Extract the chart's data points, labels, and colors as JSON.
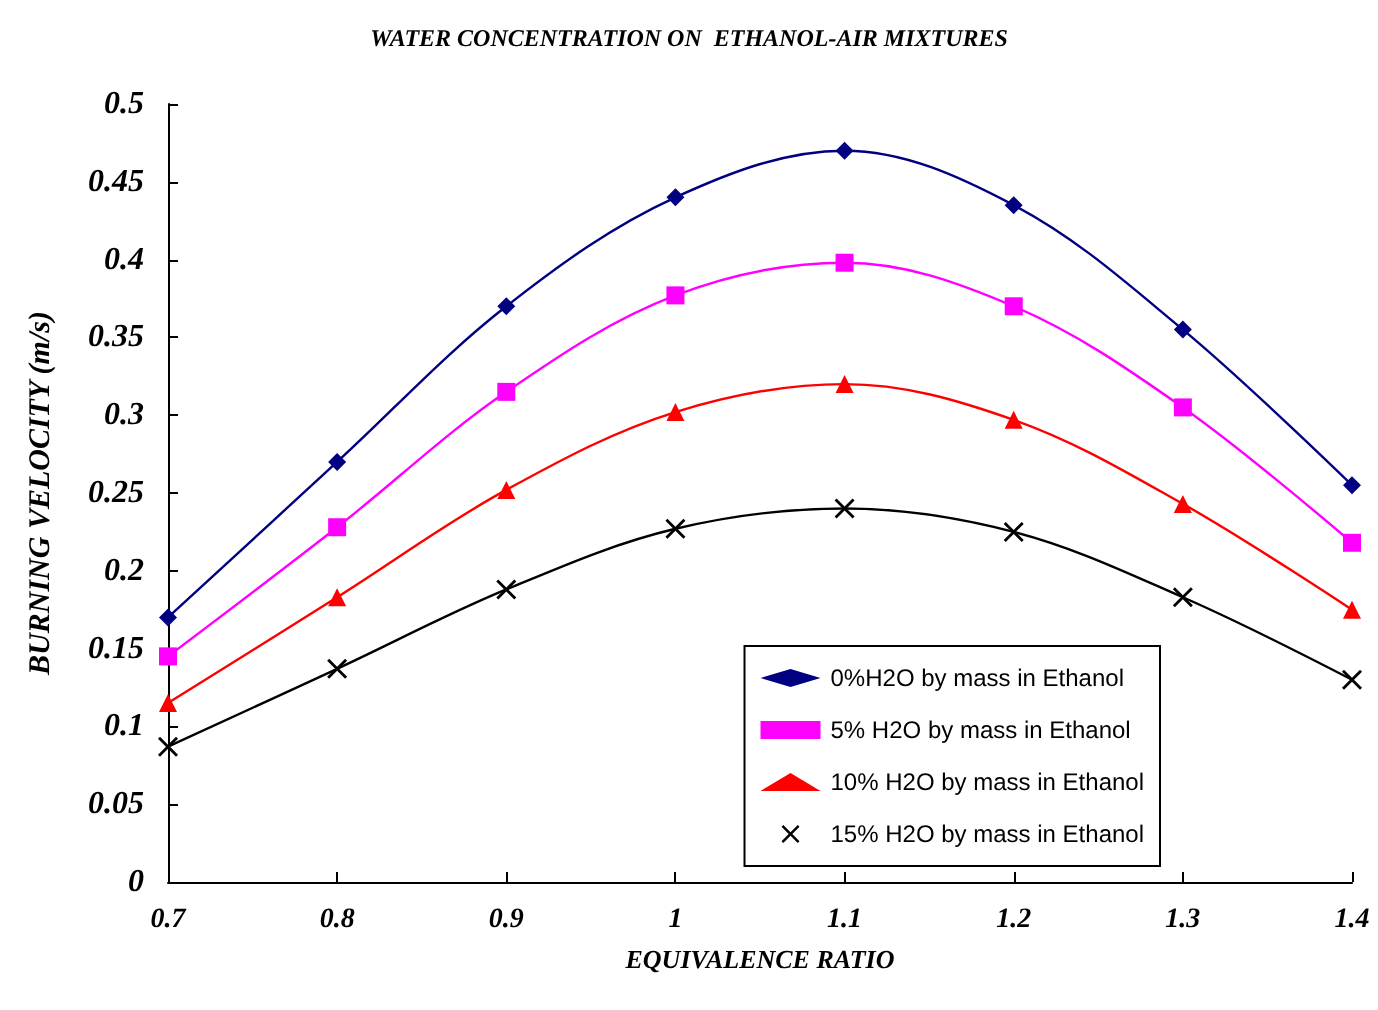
{
  "chart_data": {
    "type": "line",
    "title": "WATER CONCENTRATION ON  ETHANOL-AIR MIXTURES",
    "xlabel": "EQUIVALENCE RATIO",
    "ylabel": "BURNING VELOCITY (m/s)",
    "x": [
      0.7,
      0.8,
      0.9,
      1.0,
      1.1,
      1.2,
      1.3,
      1.4
    ],
    "xlim": [
      0.7,
      1.4
    ],
    "xticks": [
      0.7,
      0.8,
      0.9,
      1,
      1.1,
      1.2,
      1.3,
      1.4
    ],
    "ylim": [
      0,
      0.5
    ],
    "yticks": [
      0,
      0.05,
      0.1,
      0.15,
      0.2,
      0.25,
      0.3,
      0.35,
      0.4,
      0.45,
      0.5
    ],
    "grid": false,
    "legend": "bottom right",
    "series": [
      {
        "name": "0%H2O by mass in Ethanol",
        "color": "#000080",
        "marker": "diamond",
        "values": [
          0.17,
          0.27,
          0.37,
          0.44,
          0.47,
          0.435,
          0.355,
          0.255
        ]
      },
      {
        "name": "5% H2O by mass in Ethanol",
        "color": "#ff00ff",
        "marker": "square",
        "values": [
          0.145,
          0.228,
          0.315,
          0.377,
          0.398,
          0.37,
          0.305,
          0.218
        ]
      },
      {
        "name": "10% H2O by mass in Ethanol",
        "color": "#ff0000",
        "marker": "triangle",
        "values": [
          0.115,
          0.183,
          0.252,
          0.302,
          0.32,
          0.297,
          0.243,
          0.175
        ]
      },
      {
        "name": "15% H2O by mass in Ethanol",
        "color": "#000000",
        "marker": "cross",
        "values": [
          0.087,
          0.137,
          0.188,
          0.227,
          0.24,
          0.225,
          0.183,
          0.13
        ]
      }
    ]
  }
}
